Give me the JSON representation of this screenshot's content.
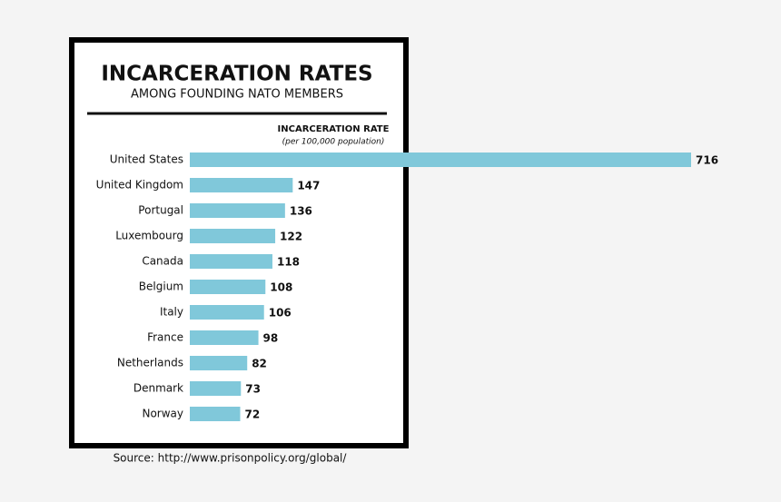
{
  "chart_data": {
    "type": "bar",
    "orientation": "horizontal",
    "title": "INCARCERATION RATES",
    "subtitle": "AMONG FOUNDING NATO MEMBERS",
    "value_label": "INCARCERATION RATE",
    "value_note": "(per 100,000 population)",
    "categories": [
      "United States",
      "United Kingdom",
      "Portugal",
      "Luxembourg",
      "Canada",
      "Belgium",
      "Italy",
      "France",
      "Netherlands",
      "Denmark",
      "Norway"
    ],
    "values": [
      716,
      147,
      136,
      122,
      118,
      108,
      106,
      98,
      82,
      73,
      72
    ],
    "color": "#80c8da",
    "source": "Source: http://www.prisonpolicy.org/global/"
  }
}
